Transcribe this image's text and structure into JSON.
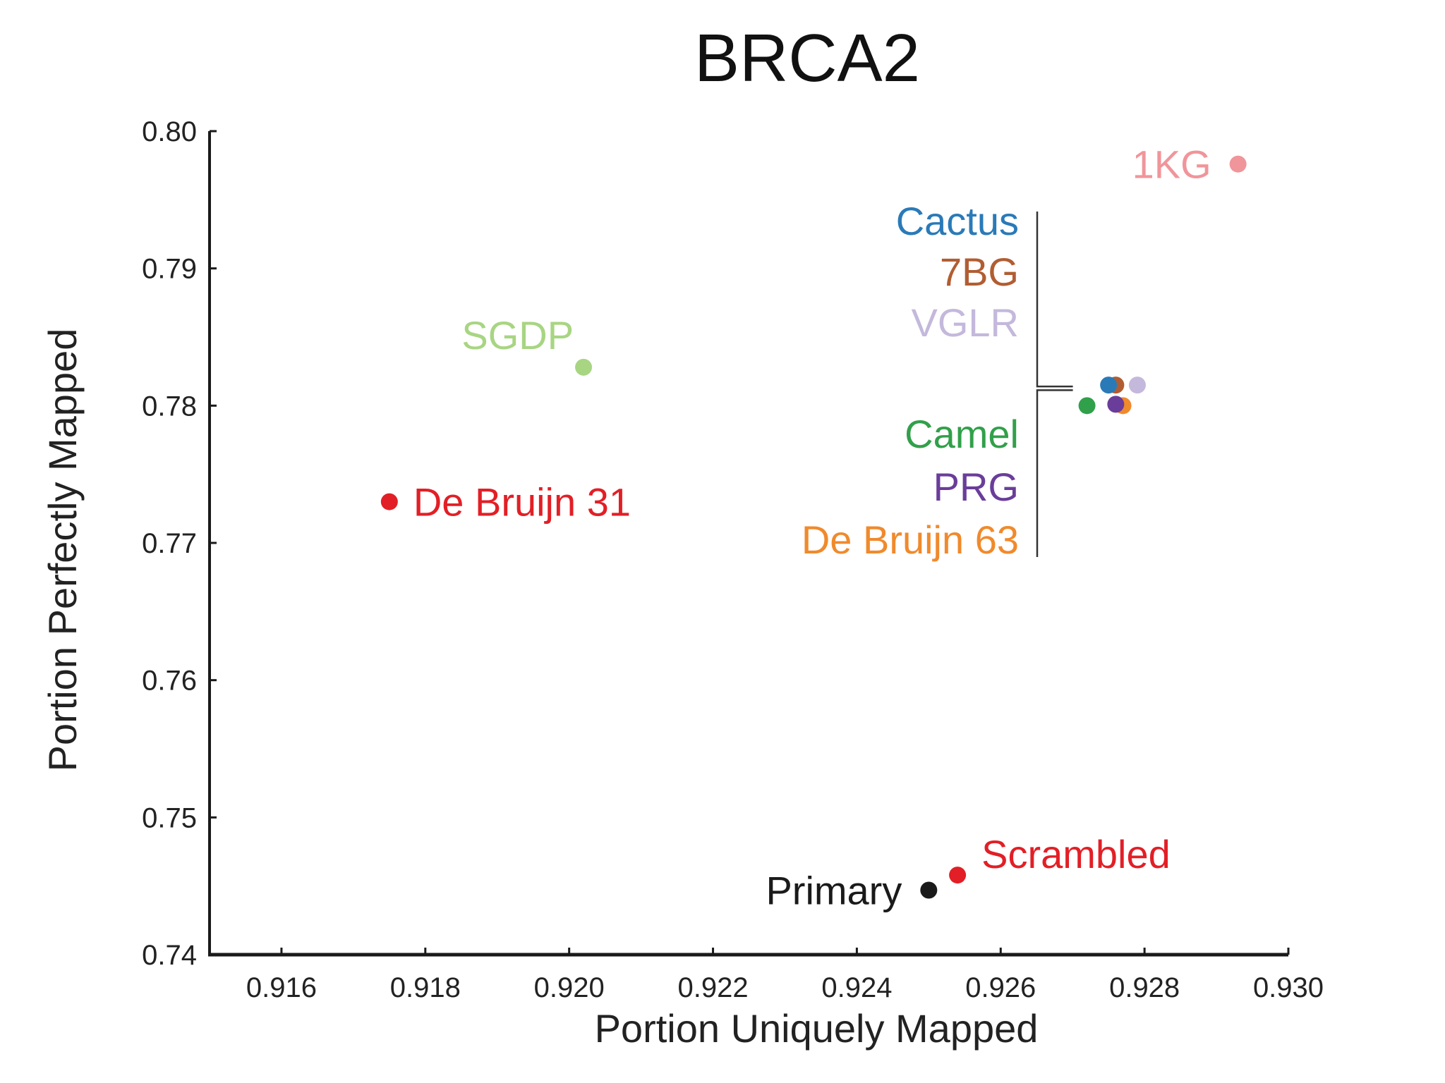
{
  "chart_data": {
    "type": "scatter",
    "title": "BRCA2",
    "xlabel": "Portion Uniquely Mapped",
    "ylabel": "Portion Perfectly Mapped",
    "xlim": [
      0.915,
      0.93
    ],
    "ylim": [
      0.74,
      0.8
    ],
    "x_ticks": [
      0.916,
      0.918,
      0.92,
      0.922,
      0.924,
      0.926,
      0.928,
      0.93
    ],
    "x_tick_labels": [
      "0.916",
      "0.918",
      "0.920",
      "0.922",
      "0.924",
      "0.926",
      "0.928",
      "0.930"
    ],
    "y_ticks": [
      0.74,
      0.75,
      0.76,
      0.77,
      0.78,
      0.79,
      0.8
    ],
    "y_tick_labels": [
      "0.74",
      "0.75",
      "0.76",
      "0.77",
      "0.78",
      "0.79",
      "0.80"
    ],
    "grid": false,
    "legend": "none",
    "points": [
      {
        "label": "1KG",
        "x": 0.9293,
        "y": 0.7976,
        "color": "#f0959a",
        "label_side": "left"
      },
      {
        "label": "SGDP",
        "x": 0.9202,
        "y": 0.7828,
        "color": "#a8d582",
        "label_side": "above-left"
      },
      {
        "label": "De Bruijn 31",
        "x": 0.9175,
        "y": 0.773,
        "color": "#e21f26",
        "label_side": "right"
      },
      {
        "label": "Primary",
        "x": 0.925,
        "y": 0.7447,
        "color": "#1a1a1a",
        "label_side": "left"
      },
      {
        "label": "Scrambled",
        "x": 0.9254,
        "y": 0.7458,
        "color": "#e21f26",
        "label_side": "above-right"
      },
      {
        "label": "VGLR",
        "x": 0.9279,
        "y": 0.7815,
        "color": "#c4b8dc",
        "label_side": "bracket-upper"
      },
      {
        "label": "7BG",
        "x": 0.9276,
        "y": 0.7815,
        "color": "#b15d32",
        "label_side": "bracket-upper"
      },
      {
        "label": "Cactus",
        "x": 0.9275,
        "y": 0.7815,
        "color": "#2a7ab8",
        "label_side": "bracket-upper"
      },
      {
        "label": "De Bruijn 63",
        "x": 0.9277,
        "y": 0.78,
        "color": "#f08a2c",
        "label_side": "bracket-lower"
      },
      {
        "label": "Camel",
        "x": 0.9272,
        "y": 0.78,
        "color": "#31a04a",
        "label_side": "bracket-lower"
      },
      {
        "label": "PRG",
        "x": 0.9276,
        "y": 0.7801,
        "color": "#6a3d9a",
        "label_side": "bracket-lower"
      }
    ],
    "bracket_upper_labels": [
      "Cactus",
      "7BG",
      "VGLR"
    ],
    "bracket_lower_labels": [
      "Camel",
      "PRG",
      "De Bruijn 63"
    ]
  }
}
